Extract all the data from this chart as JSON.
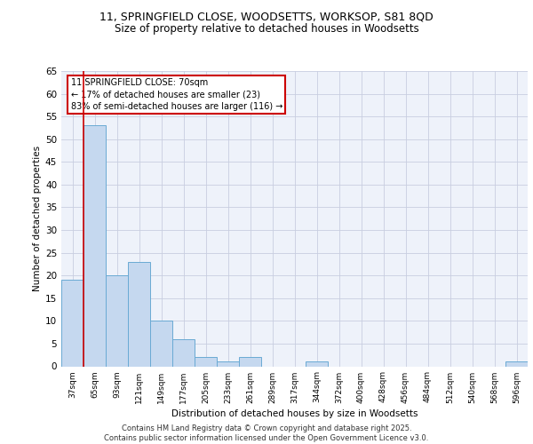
{
  "title_line1": "11, SPRINGFIELD CLOSE, WOODSETTS, WORKSOP, S81 8QD",
  "title_line2": "Size of property relative to detached houses in Woodsetts",
  "xlabel": "Distribution of detached houses by size in Woodsetts",
  "ylabel": "Number of detached properties",
  "categories": [
    "37sqm",
    "65sqm",
    "93sqm",
    "121sqm",
    "149sqm",
    "177sqm",
    "205sqm",
    "233sqm",
    "261sqm",
    "289sqm",
    "317sqm",
    "344sqm",
    "372sqm",
    "400sqm",
    "428sqm",
    "456sqm",
    "484sqm",
    "512sqm",
    "540sqm",
    "568sqm",
    "596sqm"
  ],
  "values": [
    19,
    53,
    20,
    23,
    10,
    6,
    2,
    1,
    2,
    0,
    0,
    1,
    0,
    0,
    0,
    0,
    0,
    0,
    0,
    0,
    1
  ],
  "bar_color": "#c5d8ef",
  "bar_edge_color": "#6aaad4",
  "annotation_box_color": "#cc0000",
  "annotation_text": "11 SPRINGFIELD CLOSE: 70sqm\n← 17% of detached houses are smaller (23)\n83% of semi-detached houses are larger (116) →",
  "vline_color": "#cc0000",
  "vline_pos": 0.5,
  "ylim": [
    0,
    65
  ],
  "yticks": [
    0,
    5,
    10,
    15,
    20,
    25,
    30,
    35,
    40,
    45,
    50,
    55,
    60,
    65
  ],
  "footer": "Contains HM Land Registry data © Crown copyright and database right 2025.\nContains public sector information licensed under the Open Government Licence v3.0.",
  "bg_color": "#eef2fa",
  "grid_color": "#c8cee0"
}
